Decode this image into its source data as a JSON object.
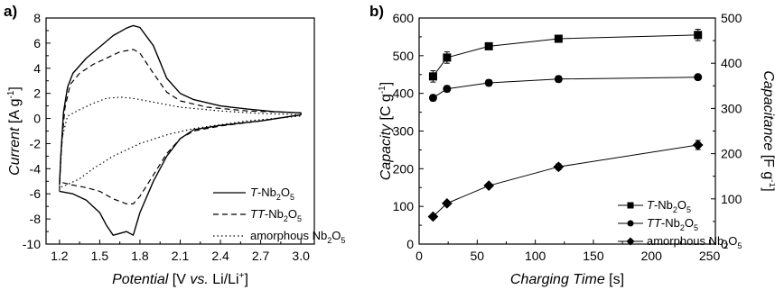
{
  "chart_data": [
    {
      "panel": "a)",
      "type": "line",
      "xlabel": {
        "italic": "Potential",
        "rest": " [V ",
        "italic2": "vs.",
        "rest2": " Li/Li",
        "sup": "+",
        "close": "]"
      },
      "ylabel": {
        "italic": "Current",
        "rest": " [A g",
        "sup": "-1",
        "close": "]"
      },
      "xlim": [
        1.1,
        3.1
      ],
      "ylim": [
        -10,
        8
      ],
      "xticks": [
        "1.2",
        "1.5",
        "1.8",
        "2.1",
        "2.4",
        "2.7",
        "3.0"
      ],
      "yticks": [
        "-10",
        "-8",
        "-6",
        "-4",
        "-2",
        "0",
        "2",
        "4",
        "6",
        "8"
      ],
      "legend_position": "lower-right",
      "series": [
        {
          "name": {
            "italic": "T",
            "base": "-Nb",
            "sub1": "2",
            "mid": "O",
            "sub2": "5"
          },
          "style": "solid",
          "anodic": [
            [
              1.2,
              -5.3
            ],
            [
              1.21,
              -3.0
            ],
            [
              1.23,
              0.5
            ],
            [
              1.26,
              2.5
            ],
            [
              1.3,
              3.6
            ],
            [
              1.4,
              4.8
            ],
            [
              1.5,
              5.7
            ],
            [
              1.6,
              6.6
            ],
            [
              1.7,
              7.2
            ],
            [
              1.75,
              7.4
            ],
            [
              1.8,
              7.25
            ],
            [
              1.9,
              5.8
            ],
            [
              2.0,
              3.2
            ],
            [
              2.1,
              2.0
            ],
            [
              2.2,
              1.5
            ],
            [
              2.4,
              1.0
            ],
            [
              2.6,
              0.75
            ],
            [
              2.8,
              0.55
            ],
            [
              3.0,
              0.45
            ]
          ],
          "cathodic": [
            [
              3.0,
              0.3
            ],
            [
              2.7,
              -0.2
            ],
            [
              2.4,
              -0.55
            ],
            [
              2.2,
              -0.9
            ],
            [
              2.1,
              -1.6
            ],
            [
              2.0,
              -3.0
            ],
            [
              1.9,
              -5.0
            ],
            [
              1.8,
              -7.5
            ],
            [
              1.75,
              -9.3
            ],
            [
              1.7,
              -9.0
            ],
            [
              1.6,
              -9.3
            ],
            [
              1.55,
              -8.5
            ],
            [
              1.5,
              -7.5
            ],
            [
              1.4,
              -6.5
            ],
            [
              1.3,
              -6.0
            ],
            [
              1.2,
              -5.8
            ]
          ]
        },
        {
          "name": {
            "italic": "TT",
            "base": "-Nb",
            "sub1": "2",
            "mid": "O",
            "sub2": "5"
          },
          "style": "dashed",
          "anodic": [
            [
              1.2,
              -5.8
            ],
            [
              1.21,
              -3.0
            ],
            [
              1.24,
              0.8
            ],
            [
              1.28,
              2.7
            ],
            [
              1.35,
              3.6
            ],
            [
              1.45,
              4.3
            ],
            [
              1.55,
              4.8
            ],
            [
              1.65,
              5.3
            ],
            [
              1.75,
              5.5
            ],
            [
              1.8,
              5.2
            ],
            [
              1.9,
              3.6
            ],
            [
              2.0,
              2.1
            ],
            [
              2.1,
              1.4
            ],
            [
              2.3,
              0.9
            ],
            [
              2.6,
              0.6
            ],
            [
              3.0,
              0.45
            ]
          ],
          "cathodic": [
            [
              3.0,
              0.3
            ],
            [
              2.7,
              -0.2
            ],
            [
              2.4,
              -0.6
            ],
            [
              2.2,
              -1.0
            ],
            [
              2.1,
              -1.6
            ],
            [
              2.0,
              -2.8
            ],
            [
              1.9,
              -4.5
            ],
            [
              1.8,
              -6.2
            ],
            [
              1.75,
              -6.8
            ],
            [
              1.7,
              -6.8
            ],
            [
              1.6,
              -6.4
            ],
            [
              1.5,
              -5.8
            ],
            [
              1.4,
              -5.5
            ],
            [
              1.3,
              -5.3
            ],
            [
              1.22,
              -5.1
            ]
          ]
        },
        {
          "name": {
            "plain": "amorphous Nb",
            "sub1": "2",
            "mid": "O",
            "sub2": "5"
          },
          "style": "dotted",
          "anodic": [
            [
              1.2,
              -5.5
            ],
            [
              1.22,
              -1.5
            ],
            [
              1.26,
              0.2
            ],
            [
              1.35,
              0.7
            ],
            [
              1.45,
              1.2
            ],
            [
              1.55,
              1.6
            ],
            [
              1.65,
              1.7
            ],
            [
              1.75,
              1.6
            ],
            [
              1.9,
              1.3
            ],
            [
              2.1,
              0.9
            ],
            [
              2.4,
              0.6
            ],
            [
              2.7,
              0.4
            ],
            [
              3.0,
              0.3
            ]
          ],
          "cathodic": [
            [
              3.0,
              0.2
            ],
            [
              2.6,
              -0.2
            ],
            [
              2.2,
              -0.8
            ],
            [
              2.0,
              -1.3
            ],
            [
              1.8,
              -2.0
            ],
            [
              1.6,
              -3.0
            ],
            [
              1.45,
              -4.0
            ],
            [
              1.35,
              -4.8
            ],
            [
              1.25,
              -5.3
            ],
            [
              1.2,
              -5.5
            ]
          ]
        }
      ]
    },
    {
      "panel": "b)",
      "type": "line",
      "xlabel": {
        "italic": "Charging Time",
        "rest": " [s]"
      },
      "ylabel": {
        "italic": "Capacity",
        "rest": " [C g",
        "sup": "-1",
        "close": "]"
      },
      "y2label": {
        "italic": "Capacitance",
        "rest": " [F g",
        "sup": "-1",
        "close": "]"
      },
      "xlim": [
        0,
        255
      ],
      "ylim": [
        0,
        600
      ],
      "y2lim": [
        0,
        500
      ],
      "xticks": [
        "0",
        "50",
        "100",
        "150",
        "200",
        "250"
      ],
      "yticks": [
        "0",
        "100",
        "200",
        "300",
        "400",
        "500",
        "600"
      ],
      "y2ticks": [
        "0",
        "100",
        "200",
        "300",
        "400",
        "500"
      ],
      "legend_position": "lower-right",
      "series": [
        {
          "name": {
            "italic": "T",
            "base": "-Nb",
            "sub1": "2",
            "mid": "O",
            "sub2": "5"
          },
          "marker": "square",
          "x": [
            12,
            24,
            60,
            120,
            240
          ],
          "y": [
            445,
            495,
            525,
            545,
            555
          ],
          "err": [
            15,
            15,
            8,
            8,
            15
          ]
        },
        {
          "name": {
            "italic": "TT",
            "base": "-Nb",
            "sub1": "2",
            "mid": "O",
            "sub2": "5"
          },
          "marker": "circle",
          "x": [
            12,
            24,
            60,
            120,
            240
          ],
          "y": [
            388,
            412,
            428,
            438,
            443
          ],
          "err": [
            8,
            8,
            8,
            8,
            5
          ]
        },
        {
          "name": {
            "plain": "amorphous Nb",
            "sub1": "2",
            "mid": "O",
            "sub2": "5"
          },
          "marker": "diamond",
          "x": [
            12,
            24,
            60,
            120,
            240
          ],
          "y": [
            73,
            108,
            155,
            205,
            263
          ],
          "err": [
            5,
            5,
            5,
            8,
            12
          ]
        }
      ]
    }
  ]
}
